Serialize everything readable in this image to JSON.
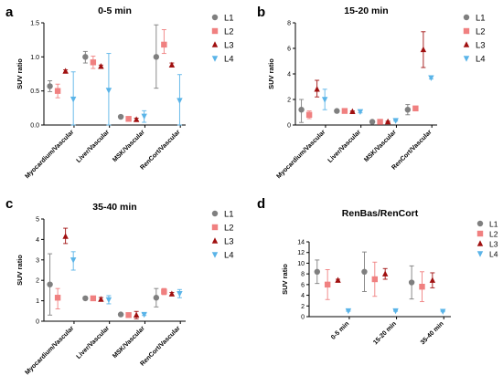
{
  "figure": {
    "legend_labels": [
      "L1",
      "L2",
      "L3",
      "L4"
    ],
    "series_colors": [
      "#7f7f7f",
      "#f08080",
      "#a01010",
      "#5ab4e8"
    ],
    "series_markers": [
      "circle",
      "square",
      "triangle-up",
      "triangle-down"
    ]
  },
  "chart_data": [
    {
      "panel_letter": "a",
      "type": "scatter",
      "title": "0-5 min",
      "ylabel": "SUV ratio",
      "ylim": [
        0,
        1.5
      ],
      "yticks": [
        "0.0",
        "0.5",
        "1.0",
        "1.5"
      ],
      "ytick_values": [
        0,
        0.5,
        1.0,
        1.5
      ],
      "categories": [
        "Myocardium/Vascular",
        "Liver/Vascular",
        "MSK/Vascular",
        "RenCort/Vascular"
      ],
      "legend_position": "right",
      "series": [
        {
          "name": "L1",
          "values": [
            0.57,
            1.0,
            0.12,
            1.0
          ],
          "err_low": [
            0.49,
            0.91,
            0.1,
            0.54
          ],
          "err_high": [
            0.65,
            1.08,
            0.14,
            1.47
          ]
        },
        {
          "name": "L2",
          "values": [
            0.5,
            0.92,
            0.09,
            1.18
          ],
          "err_low": [
            0.4,
            0.83,
            0.07,
            1.05
          ],
          "err_high": [
            0.6,
            1.01,
            0.11,
            1.4
          ]
        },
        {
          "name": "L3",
          "values": [
            0.79,
            0.86,
            0.08,
            0.88
          ],
          "err_low": [
            0.77,
            0.84,
            0.06,
            0.85
          ],
          "err_high": [
            0.81,
            0.88,
            0.1,
            0.91
          ]
        },
        {
          "name": "L4",
          "values": [
            0.38,
            0.51,
            0.13,
            0.36
          ],
          "err_low": [
            0.0,
            0.0,
            0.04,
            0.0
          ],
          "err_high": [
            0.78,
            1.05,
            0.21,
            0.74
          ]
        }
      ]
    },
    {
      "panel_letter": "b",
      "type": "scatter",
      "title": "15-20 min",
      "ylabel": "SUV ratio",
      "ylim": [
        0,
        8
      ],
      "yticks": [
        "0",
        "2",
        "4",
        "6",
        "8"
      ],
      "ytick_values": [
        0,
        2,
        4,
        6,
        8
      ],
      "categories": [
        "Myocardium/Vascular",
        "Liver/Vascular",
        "MSK/Vascular",
        "RenCort/Vascular"
      ],
      "legend_position": "right",
      "series": [
        {
          "name": "L1",
          "values": [
            1.2,
            1.1,
            0.25,
            1.2
          ],
          "err_low": [
            0.2,
            1.0,
            0.2,
            0.8
          ],
          "err_high": [
            2.0,
            1.2,
            0.3,
            1.6
          ]
        },
        {
          "name": "L2",
          "values": [
            0.8,
            1.1,
            0.25,
            1.3
          ],
          "err_low": [
            0.5,
            1.0,
            0.2,
            1.2
          ],
          "err_high": [
            1.1,
            1.2,
            0.3,
            1.4
          ]
        },
        {
          "name": "L3",
          "values": [
            2.8,
            1.05,
            0.25,
            5.9
          ],
          "err_low": [
            2.2,
            1.0,
            0.2,
            4.5
          ],
          "err_high": [
            3.5,
            1.1,
            0.3,
            7.3
          ]
        },
        {
          "name": "L4",
          "values": [
            2.0,
            1.05,
            0.35,
            3.7
          ],
          "err_low": [
            1.2,
            0.95,
            0.3,
            3.6
          ],
          "err_high": [
            2.8,
            1.15,
            0.4,
            3.8
          ]
        }
      ]
    },
    {
      "panel_letter": "c",
      "type": "scatter",
      "title": "35-40 min",
      "ylabel": "SUV ratio",
      "ylim": [
        0,
        5
      ],
      "yticks": [
        "0",
        "1",
        "2",
        "3",
        "4",
        "5"
      ],
      "ytick_values": [
        0,
        1,
        2,
        3,
        4,
        5
      ],
      "categories": [
        "Myocardium/Vascular",
        "Liver/Vascular",
        "MSK/Vascular",
        "RenCort/Vascular"
      ],
      "legend_position": "right",
      "series": [
        {
          "name": "L1",
          "values": [
            1.8,
            1.12,
            0.33,
            1.15
          ],
          "err_low": [
            0.3,
            1.05,
            0.28,
            0.7
          ],
          "err_high": [
            3.3,
            1.19,
            0.38,
            1.6
          ]
        },
        {
          "name": "L2",
          "values": [
            1.15,
            1.12,
            0.3,
            1.45
          ],
          "err_low": [
            0.6,
            1.05,
            0.25,
            1.3
          ],
          "err_high": [
            1.6,
            1.19,
            0.35,
            1.6
          ]
        },
        {
          "name": "L3",
          "values": [
            4.15,
            1.07,
            0.3,
            1.33
          ],
          "err_low": [
            3.8,
            0.98,
            0.12,
            1.25
          ],
          "err_high": [
            4.55,
            1.16,
            0.48,
            1.41
          ]
        },
        {
          "name": "L4",
          "values": [
            3.0,
            1.05,
            0.33,
            1.35
          ],
          "err_low": [
            2.5,
            0.85,
            0.28,
            1.15
          ],
          "err_high": [
            3.4,
            1.25,
            0.38,
            1.55
          ]
        }
      ]
    },
    {
      "panel_letter": "d",
      "type": "scatter",
      "title": "RenBas/RenCort",
      "ylabel": "SUV ratio",
      "ylim": [
        0,
        14
      ],
      "yticks": [
        "0",
        "2",
        "4",
        "6",
        "8",
        "10",
        "12",
        "14"
      ],
      "ytick_values": [
        0,
        2,
        4,
        6,
        8,
        10,
        12,
        14
      ],
      "categories": [
        "0-5 min",
        "15-20 min",
        "35-40 min"
      ],
      "legend_position": "right",
      "series": [
        {
          "name": "L1",
          "values": [
            8.4,
            8.4,
            6.4
          ],
          "err_low": [
            6.2,
            4.7,
            3.3
          ],
          "err_high": [
            10.6,
            12.1,
            9.5
          ]
        },
        {
          "name": "L2",
          "values": [
            6.0,
            7.0,
            5.6
          ],
          "err_low": [
            3.2,
            3.8,
            2.8
          ],
          "err_high": [
            8.8,
            10.2,
            8.4
          ]
        },
        {
          "name": "L3",
          "values": [
            6.8,
            8.0,
            6.8
          ],
          "err_low": [
            6.6,
            7.0,
            5.4
          ],
          "err_high": [
            7.0,
            9.0,
            8.2
          ]
        },
        {
          "name": "L4",
          "values": [
            1.1,
            1.1,
            1.0
          ],
          "err_low": [
            1.0,
            1.0,
            0.9
          ],
          "err_high": [
            1.2,
            1.2,
            1.1
          ]
        }
      ]
    }
  ]
}
